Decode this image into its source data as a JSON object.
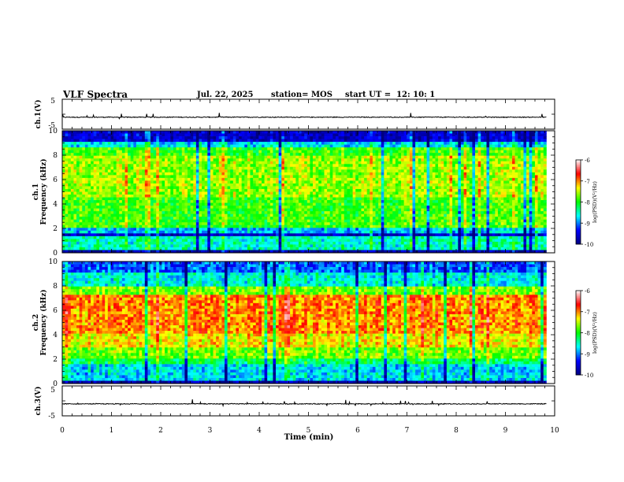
{
  "header": {
    "title": "VLF Spectra",
    "date": "Jul. 22, 2025",
    "station": "station= MOS",
    "start": "start UT =  12: 10: 1"
  },
  "chart_data": [
    {
      "type": "line",
      "panel": "ch1-waveform",
      "ylabel": "ch.1(V)",
      "ylim": [
        -5,
        5
      ],
      "yticks": [
        "5",
        "-5"
      ],
      "xlim": [
        0,
        10
      ],
      "data_xlim": [
        0,
        9.83
      ],
      "baseline": -1
    },
    {
      "type": "heatmap",
      "panel": "ch1-spectrogram",
      "ylabel": "ch.1\nFrequency (kHz)",
      "ylim": [
        0,
        10
      ],
      "yticks": [
        "0",
        "2",
        "4",
        "6",
        "8",
        "10"
      ],
      "xlim": [
        0,
        10
      ],
      "data_xlim": [
        0,
        9.83
      ],
      "colorbar": {
        "label": "log(PSD)(V²/Hz)",
        "range": [
          -10,
          -6
        ],
        "ticks": [
          "-6",
          "-7",
          "-8",
          "-9",
          "-10"
        ]
      },
      "bands": [
        {
          "from": 0.0,
          "to": 0.2,
          "value": -9.8
        },
        {
          "from": 0.2,
          "to": 1.4,
          "value": -8.5
        },
        {
          "from": 1.4,
          "to": 1.6,
          "value": -9.6
        },
        {
          "from": 1.6,
          "to": 2.0,
          "value": -8.8
        },
        {
          "from": 2.0,
          "to": 4.5,
          "value": -7.9
        },
        {
          "from": 4.5,
          "to": 8.0,
          "value": -7.6
        },
        {
          "from": 8.0,
          "to": 8.7,
          "value": -7.9
        },
        {
          "from": 8.7,
          "to": 9.2,
          "value": -8.7
        },
        {
          "from": 9.2,
          "to": 10.0,
          "value": -9.6
        }
      ]
    },
    {
      "type": "heatmap",
      "panel": "ch2-spectrogram",
      "ylabel": "ch.2\nFrequency (kHz)",
      "ylim": [
        0,
        10
      ],
      "yticks": [
        "0",
        "2",
        "4",
        "6",
        "8",
        "10"
      ],
      "xlim": [
        0,
        10
      ],
      "data_xlim": [
        0,
        9.83
      ],
      "colorbar": {
        "label": "log(PSD)(V²/Hz)",
        "range": [
          -10,
          -6
        ],
        "ticks": [
          "-6",
          "-7",
          "-8",
          "-9",
          "-10"
        ]
      },
      "bands": [
        {
          "from": 0.0,
          "to": 0.2,
          "value": -9.8
        },
        {
          "from": 0.2,
          "to": 1.6,
          "value": -8.7
        },
        {
          "from": 1.6,
          "to": 2.0,
          "value": -8.2
        },
        {
          "from": 2.0,
          "to": 3.0,
          "value": -7.7
        },
        {
          "from": 3.0,
          "to": 4.0,
          "value": -7.3
        },
        {
          "from": 4.0,
          "to": 7.2,
          "value": -7.0
        },
        {
          "from": 7.2,
          "to": 8.0,
          "value": -7.7
        },
        {
          "from": 8.0,
          "to": 9.0,
          "value": -8.6
        },
        {
          "from": 9.0,
          "to": 10.0,
          "value": -9.1
        }
      ]
    },
    {
      "type": "line",
      "panel": "ch3-waveform",
      "ylabel": "ch.3(V)",
      "ylim": [
        -5,
        5
      ],
      "yticks": [
        "5",
        "-5"
      ],
      "xlim": [
        0,
        10
      ],
      "data_xlim": [
        0,
        9.83
      ],
      "baseline": -1
    }
  ],
  "xaxis": {
    "label": "Time (min)",
    "ticks": [
      "0",
      "1",
      "2",
      "3",
      "4",
      "5",
      "6",
      "7",
      "8",
      "9",
      "10"
    ]
  },
  "colors": {
    "colormap": [
      "#00007f",
      "#0000ff",
      "#00ffff",
      "#00ff00",
      "#ffff00",
      "#ff0000",
      "#ffffff"
    ]
  }
}
